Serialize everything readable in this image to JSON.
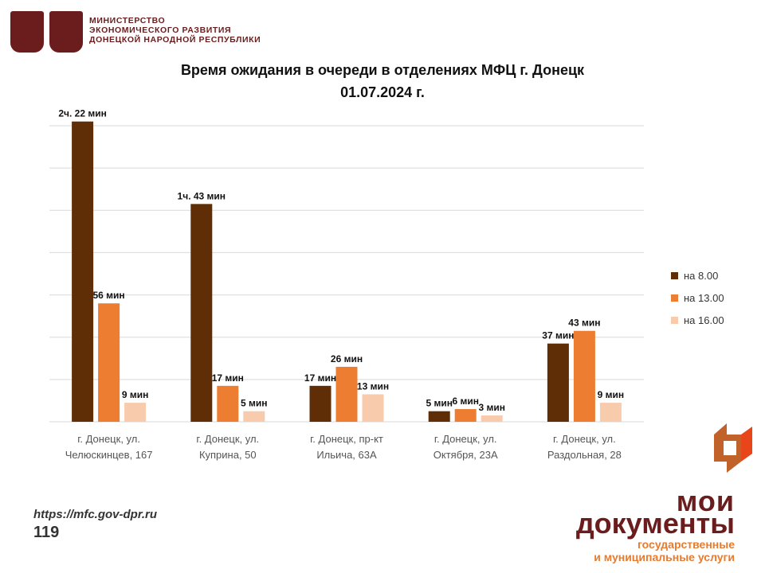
{
  "header": {
    "ministry_lines": [
      "МИНИСТЕРСТВО",
      "ЭКОНОМИЧЕСКОГО РАЗВИТИЯ",
      "ДОНЕЦКОЙ НАРОДНОЙ РЕСПУБЛИКИ"
    ]
  },
  "chart_data": {
    "type": "bar",
    "title": "Время ожидания в очереди в отделениях МФЦ г. Донецк",
    "subtitle": "01.07.2024 г.",
    "categories": [
      [
        "г. Донецк, ул.",
        "Челюскинцев, 167"
      ],
      [
        "г. Донецк, ул.",
        "Куприна, 50"
      ],
      [
        "г. Донецк, пр-кт",
        "Ильича, 63А"
      ],
      [
        "г. Донецк, ул.",
        "Октября, 23А"
      ],
      [
        "г. Донецк, ул.",
        "Раздольная, 28"
      ]
    ],
    "series": [
      {
        "name": "на 8.00",
        "color": "#5f2e06",
        "values": [
          142,
          103,
          17,
          5,
          37
        ],
        "labels": [
          "2ч. 22 мин",
          "1ч. 43 мин",
          "17 мин",
          "5 мин",
          "37 мин"
        ]
      },
      {
        "name": "на 13.00",
        "color": "#ed7d31",
        "values": [
          56,
          17,
          26,
          6,
          43
        ],
        "labels": [
          "56 мин",
          "17 мин",
          "26 мин",
          "6 мин",
          "43 мин"
        ]
      },
      {
        "name": "на 16.00",
        "color": "#f8cbad",
        "values": [
          9,
          5,
          13,
          3,
          9
        ],
        "labels": [
          "9 мин",
          "5 мин",
          "13 мин",
          "3 мин",
          "9 мин"
        ]
      }
    ],
    "ylim": [
      0,
      140
    ],
    "grid": true,
    "legend_position": "right"
  },
  "footer": {
    "url": "https://mfc.gov-dpr.ru",
    "page_number": "119",
    "brand_lines": [
      "мои",
      "документы",
      "государственные",
      "и муниципальные услуги"
    ]
  }
}
